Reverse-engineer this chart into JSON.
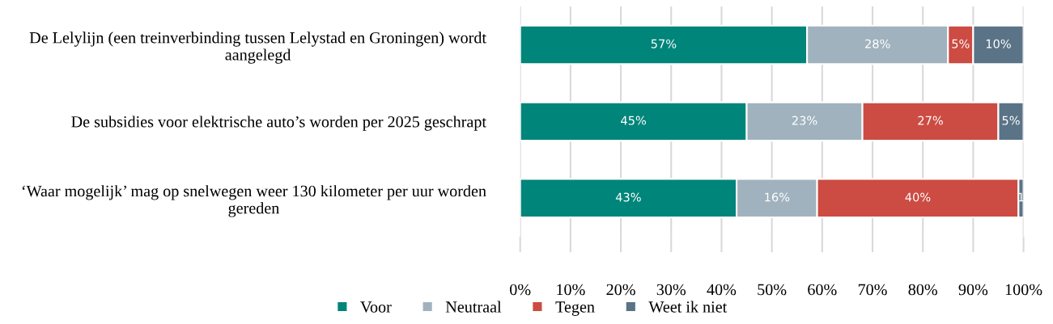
{
  "chart_data": {
    "type": "bar",
    "orientation": "horizontal",
    "stacked": true,
    "categories": [
      "De Lelylijn (een treinverbinding tussen Lelystad en Groningen) wordt aangelegd",
      "De subsidies voor elektrische auto’s worden per 2025 geschrapt",
      "‘Waar mogelijk’ mag op snelwegen weer 130 kilometer per uur worden gereden"
    ],
    "series": [
      {
        "name": "Voor",
        "color": "#00857a",
        "values": [
          57,
          45,
          43
        ],
        "value_labels": [
          "57%",
          "45%",
          "43%"
        ]
      },
      {
        "name": "Neutraal",
        "color": "#a0b2bd",
        "values": [
          28,
          23,
          16
        ],
        "value_labels": [
          "28%",
          "23%",
          "16%"
        ]
      },
      {
        "name": "Tegen",
        "color": "#cc4b42",
        "values": [
          5,
          27,
          40
        ],
        "value_labels": [
          "5%",
          "27%",
          "40%"
        ]
      },
      {
        "name": "Weet ik niet",
        "color": "#5a7386",
        "values": [
          10,
          5,
          1
        ],
        "value_labels": [
          "10%",
          "5%",
          "1"
        ]
      }
    ],
    "xlim": [
      0,
      100
    ],
    "xticks": [
      {
        "value": 0,
        "label": "0%"
      },
      {
        "value": 10,
        "label": "10%"
      },
      {
        "value": 20,
        "label": "20%"
      },
      {
        "value": 30,
        "label": "30%"
      },
      {
        "value": 40,
        "label": "40%"
      },
      {
        "value": 50,
        "label": "50%"
      },
      {
        "value": 60,
        "label": "60%"
      },
      {
        "value": 70,
        "label": "70%"
      },
      {
        "value": 80,
        "label": "80%"
      },
      {
        "value": 90,
        "label": "90%"
      },
      {
        "value": 100,
        "label": "100%"
      }
    ],
    "grid": "x",
    "legend": "bottom"
  }
}
